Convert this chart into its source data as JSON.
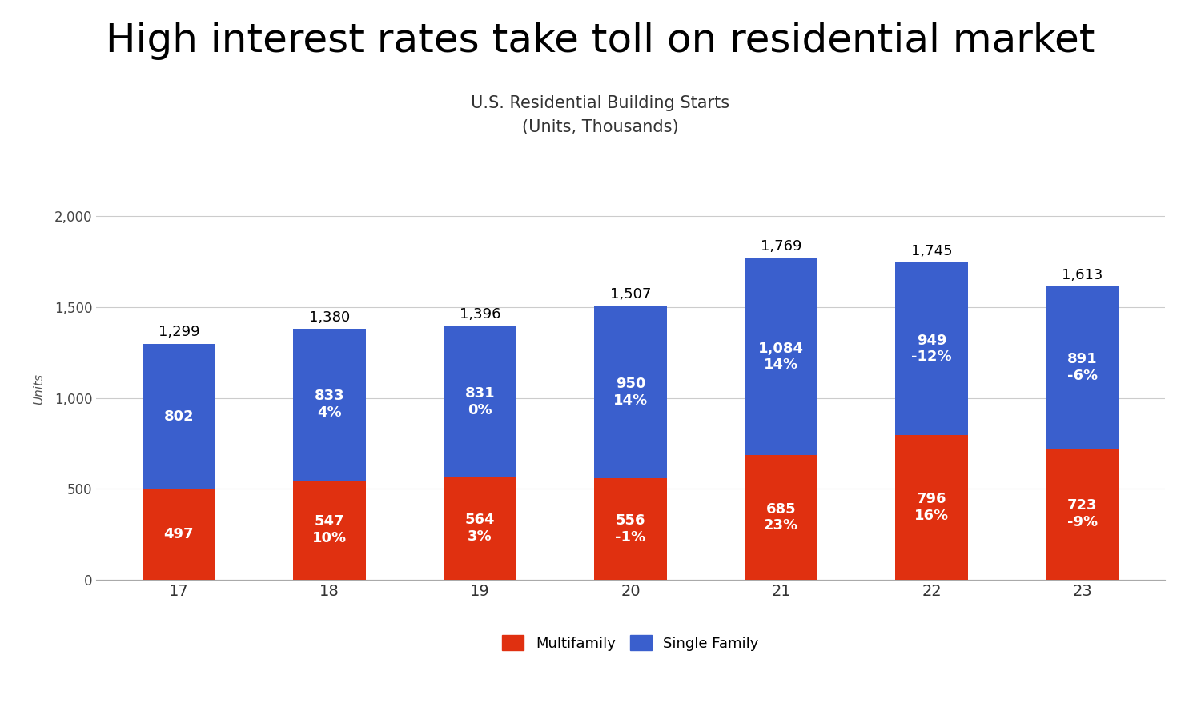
{
  "title": "High interest rates take toll on residential market",
  "subtitle": "U.S. Residential Building Starts\n(Units, Thousands)",
  "ylabel": "Units",
  "years": [
    "17",
    "18",
    "19",
    "20",
    "21",
    "22",
    "23"
  ],
  "multifamily": [
    497,
    547,
    564,
    556,
    685,
    796,
    723
  ],
  "single_family": [
    802,
    833,
    831,
    950,
    1084,
    949,
    891
  ],
  "totals": [
    1299,
    1380,
    1396,
    1507,
    1769,
    1745,
    1613
  ],
  "mf_pct": [
    "",
    "10%",
    "3%",
    "-1%",
    "23%",
    "16%",
    "-9%"
  ],
  "sf_pct": [
    "",
    "4%",
    "0%",
    "14%",
    "14%",
    "-12%",
    "-6%"
  ],
  "multifamily_color": "#e03010",
  "single_family_color": "#3a5fcd",
  "background_color": "#ffffff",
  "title_fontsize": 36,
  "subtitle_fontsize": 15,
  "ylabel_fontsize": 11,
  "bar_label_fontsize": 13,
  "total_label_fontsize": 13,
  "legend_fontsize": 13,
  "ylim": [
    0,
    2100
  ],
  "yticks": [
    0,
    500,
    1000,
    1500,
    2000
  ],
  "grid_color": "#cccccc",
  "bar_width": 0.48
}
